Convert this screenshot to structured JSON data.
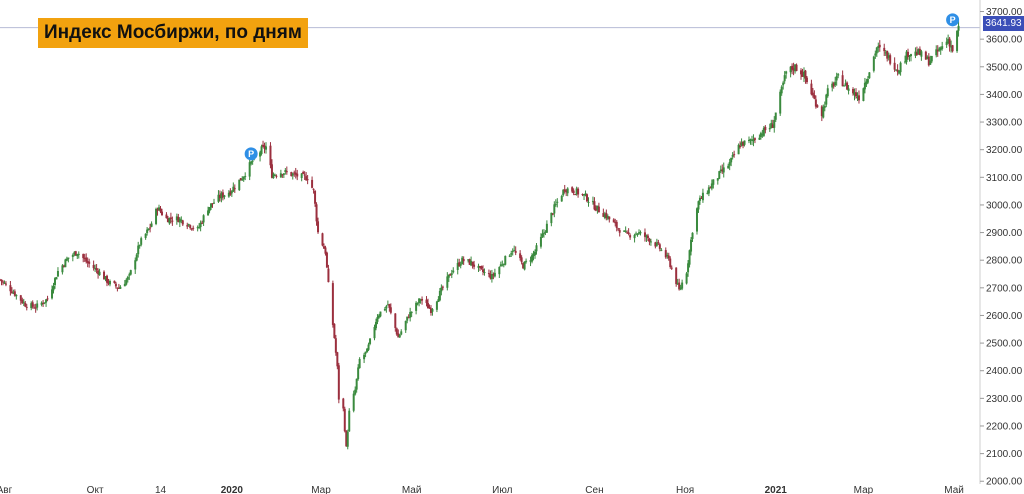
{
  "title": "Индекс Мосбиржи, по дням",
  "last_price": "3641.93",
  "colors": {
    "up": "#3a8a3e",
    "down": "#9b2f3e",
    "title_bg": "#f2a20f",
    "price_badge": "#3b4fb8",
    "marker": "#2f8fe6"
  },
  "markers": [
    {
      "label": "P",
      "date": "2020-01-14",
      "value": 3185
    },
    {
      "label": "P",
      "date": "2021-04-30",
      "value": 3670
    }
  ],
  "chart_data": {
    "type": "candlestick",
    "title": "Индекс Мосбиржи, по дням",
    "x_range": [
      "2019-07-29",
      "2021-05-07"
    ],
    "ylim": [
      1990,
      3720
    ],
    "y_ticks": [
      2000,
      2100,
      2200,
      2300,
      2400,
      2500,
      2600,
      2700,
      2800,
      2900,
      3000,
      3100,
      3200,
      3300,
      3400,
      3500,
      3600,
      3700
    ],
    "y_tick_labels": [
      "2000.00",
      "2100.00",
      "2200.00",
      "2300.00",
      "2400.00",
      "2500.00",
      "2600.00",
      "2700.00",
      "2800.00",
      "2900.00",
      "3000.00",
      "3100.00",
      "3200.00",
      "3300.00",
      "3400.00",
      "3500.00",
      "3600.00",
      "3700.00"
    ],
    "x_ticks": [
      {
        "label": "Авг",
        "date": "2019-08-01",
        "bold": false
      },
      {
        "label": "Окт",
        "date": "2019-10-01",
        "bold": false
      },
      {
        "label": "14",
        "date": "2019-11-14",
        "bold": false
      },
      {
        "label": "2020",
        "date": "2020-01-01",
        "bold": true
      },
      {
        "label": "Мар",
        "date": "2020-03-01",
        "bold": false
      },
      {
        "label": "Май",
        "date": "2020-05-01",
        "bold": false
      },
      {
        "label": "Июл",
        "date": "2020-07-01",
        "bold": false
      },
      {
        "label": "Сен",
        "date": "2020-09-01",
        "bold": false
      },
      {
        "label": "Ноя",
        "date": "2020-11-01",
        "bold": false
      },
      {
        "label": "2021",
        "date": "2021-01-01",
        "bold": true
      },
      {
        "label": "Мар",
        "date": "2021-03-01",
        "bold": false
      },
      {
        "label": "Май",
        "date": "2021-05-01",
        "bold": false
      }
    ],
    "last_value": 3641.93,
    "grid": false,
    "close_path": [
      [
        "2019-07-29",
        2730
      ],
      [
        "2019-08-06",
        2690
      ],
      [
        "2019-08-15",
        2640
      ],
      [
        "2019-08-22",
        2630
      ],
      [
        "2019-08-30",
        2660
      ],
      [
        "2019-09-06",
        2760
      ],
      [
        "2019-09-13",
        2810
      ],
      [
        "2019-09-19",
        2830
      ],
      [
        "2019-09-26",
        2790
      ],
      [
        "2019-10-03",
        2760
      ],
      [
        "2019-10-10",
        2720
      ],
      [
        "2019-10-17",
        2700
      ],
      [
        "2019-10-24",
        2740
      ],
      [
        "2019-10-31",
        2860
      ],
      [
        "2019-11-07",
        2920
      ],
      [
        "2019-11-12",
        2990
      ],
      [
        "2019-11-18",
        2950
      ],
      [
        "2019-11-26",
        2950
      ],
      [
        "2019-12-03",
        2930
      ],
      [
        "2019-12-09",
        2910
      ],
      [
        "2019-12-16",
        2990
      ],
      [
        "2019-12-24",
        3030
      ],
      [
        "2019-12-31",
        3050
      ],
      [
        "2020-01-08",
        3100
      ],
      [
        "2020-01-15",
        3160
      ],
      [
        "2020-01-21",
        3200
      ],
      [
        "2020-01-24",
        3210
      ],
      [
        "2020-01-28",
        3110
      ],
      [
        "2020-02-04",
        3120
      ],
      [
        "2020-02-11",
        3110
      ],
      [
        "2020-02-18",
        3100
      ],
      [
        "2020-02-21",
        3100
      ],
      [
        "2020-02-25",
        3050
      ],
      [
        "2020-02-28",
        2900
      ],
      [
        "2020-03-04",
        2830
      ],
      [
        "2020-03-06",
        2710
      ],
      [
        "2020-03-10",
        2520
      ],
      [
        "2020-03-12",
        2410
      ],
      [
        "2020-03-13",
        2300
      ],
      [
        "2020-03-16",
        2260
      ],
      [
        "2020-03-18",
        2120
      ],
      [
        "2020-03-20",
        2250
      ],
      [
        "2020-03-24",
        2330
      ],
      [
        "2020-03-27",
        2440
      ],
      [
        "2020-04-01",
        2470
      ],
      [
        "2020-04-08",
        2600
      ],
      [
        "2020-04-15",
        2640
      ],
      [
        "2020-04-22",
        2520
      ],
      [
        "2020-04-29",
        2600
      ],
      [
        "2020-05-07",
        2660
      ],
      [
        "2020-05-14",
        2620
      ],
      [
        "2020-05-21",
        2690
      ],
      [
        "2020-05-28",
        2760
      ],
      [
        "2020-06-04",
        2800
      ],
      [
        "2020-06-10",
        2790
      ],
      [
        "2020-06-17",
        2760
      ],
      [
        "2020-06-24",
        2740
      ],
      [
        "2020-07-01",
        2790
      ],
      [
        "2020-07-08",
        2840
      ],
      [
        "2020-07-15",
        2780
      ],
      [
        "2020-07-22",
        2820
      ],
      [
        "2020-07-29",
        2900
      ],
      [
        "2020-08-05",
        2990
      ],
      [
        "2020-08-12",
        3060
      ],
      [
        "2020-08-19",
        3050
      ],
      [
        "2020-08-26",
        3030
      ],
      [
        "2020-09-02",
        2990
      ],
      [
        "2020-09-09",
        2960
      ],
      [
        "2020-09-16",
        2920
      ],
      [
        "2020-09-23",
        2890
      ],
      [
        "2020-09-30",
        2900
      ],
      [
        "2020-10-07",
        2880
      ],
      [
        "2020-10-14",
        2850
      ],
      [
        "2020-10-21",
        2800
      ],
      [
        "2020-10-28",
        2690
      ],
      [
        "2020-11-02",
        2760
      ],
      [
        "2020-11-06",
        2910
      ],
      [
        "2020-11-10",
        3010
      ],
      [
        "2020-11-17",
        3060
      ],
      [
        "2020-11-24",
        3110
      ],
      [
        "2020-12-01",
        3150
      ],
      [
        "2020-12-08",
        3220
      ],
      [
        "2020-12-15",
        3230
      ],
      [
        "2020-12-22",
        3260
      ],
      [
        "2020-12-30",
        3290
      ],
      [
        "2021-01-08",
        3480
      ],
      [
        "2021-01-14",
        3500
      ],
      [
        "2021-01-20",
        3470
      ],
      [
        "2021-01-27",
        3380
      ],
      [
        "2021-02-01",
        3330
      ],
      [
        "2021-02-05",
        3410
      ],
      [
        "2021-02-12",
        3460
      ],
      [
        "2021-02-19",
        3420
      ],
      [
        "2021-02-26",
        3390
      ],
      [
        "2021-03-04",
        3470
      ],
      [
        "2021-03-10",
        3570
      ],
      [
        "2021-03-17",
        3540
      ],
      [
        "2021-03-24",
        3490
      ],
      [
        "2021-03-31",
        3550
      ],
      [
        "2021-04-07",
        3550
      ],
      [
        "2021-04-14",
        3520
      ],
      [
        "2021-04-21",
        3560
      ],
      [
        "2021-04-27",
        3600
      ],
      [
        "2021-04-30",
        3560
      ],
      [
        "2021-05-04",
        3641.93
      ]
    ]
  }
}
